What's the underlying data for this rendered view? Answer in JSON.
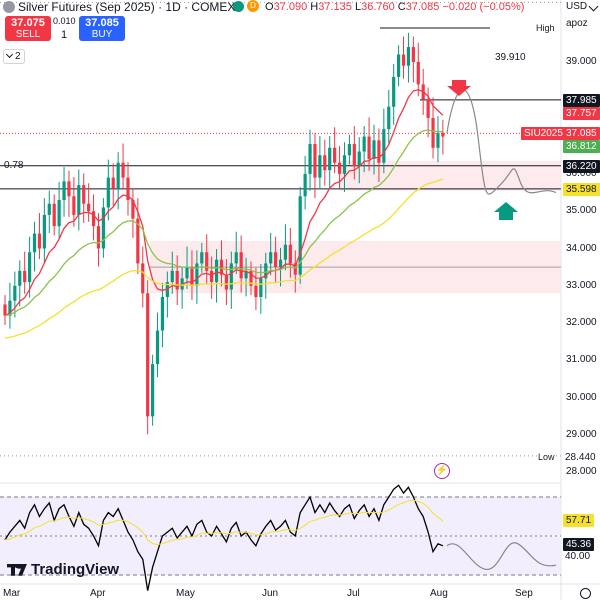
{
  "header": {
    "title": "Silver Futures (Sep 2025) · 1D · COMEX",
    "ohlc": {
      "o_label": "O",
      "o": "37.090",
      "h_label": "H",
      "h": "37.135",
      "l_label": "L",
      "l": "36.760",
      "c_label": "C",
      "c": "37.085",
      "change": "−0.020 (−0.05%)"
    },
    "currency": "USD",
    "scale_mode": "apoz"
  },
  "trade": {
    "sell_price": "37.075",
    "sell_label": "SELL",
    "spread": "0.010",
    "qty": "1",
    "buy_price": "37.085",
    "buy_label": "BUY"
  },
  "indicator_toggle": "2",
  "annotations": {
    "high_label": "High",
    "low_label": "Low",
    "low_value": "28.440",
    "level_39910": "39.910",
    "level_078": "0.78"
  },
  "price_tags": [
    {
      "text": "37.985",
      "color": "#131722",
      "price": 37.985
    },
    {
      "text": "37.757",
      "color": "#f23645",
      "price": 37.757
    },
    {
      "text": "SIU2025",
      "color": "#f23645",
      "price": 37.085
    },
    {
      "text": "37.085",
      "color": "#f23645",
      "price": 37.085
    },
    {
      "text": "36.812",
      "color": "#4caf50",
      "price": 36.812
    },
    {
      "text": "36.220",
      "color": "#131722",
      "price": 36.22
    },
    {
      "text": "35.598",
      "color": "#f5e12a",
      "price": 35.598
    }
  ],
  "price_axis": [
    "39.000",
    "38.000",
    "37.000",
    "36.000",
    "35.000",
    "34.000",
    "33.000",
    "32.000",
    "31.000",
    "30.000",
    "29.000",
    "28.000"
  ],
  "rsi_tags": [
    {
      "text": "57.71",
      "color": "#f5e12a"
    },
    {
      "text": "45.36",
      "color": "#131722"
    }
  ],
  "rsi_axis": [
    "40.00"
  ],
  "date_axis": [
    "Mar",
    "Apr",
    "May",
    "Jun",
    "Jul",
    "Aug",
    "Sep"
  ],
  "watermark": "TradingView",
  "colors": {
    "up": "#089981",
    "down": "#f23645",
    "ema_fast": "#f23645",
    "ema_mid": "#8bc34a",
    "ema_slow": "#f5e12a",
    "rsi": "#000000",
    "rsi_ma": "#f5e12a",
    "projection": "#888888"
  },
  "icons": [
    "symbol-logo-icon",
    "delayed-d-icon",
    "bolt-icon",
    "arrow-down-icon",
    "arrow-up-icon",
    "chevron-down-icon",
    "settings-icon"
  ]
}
